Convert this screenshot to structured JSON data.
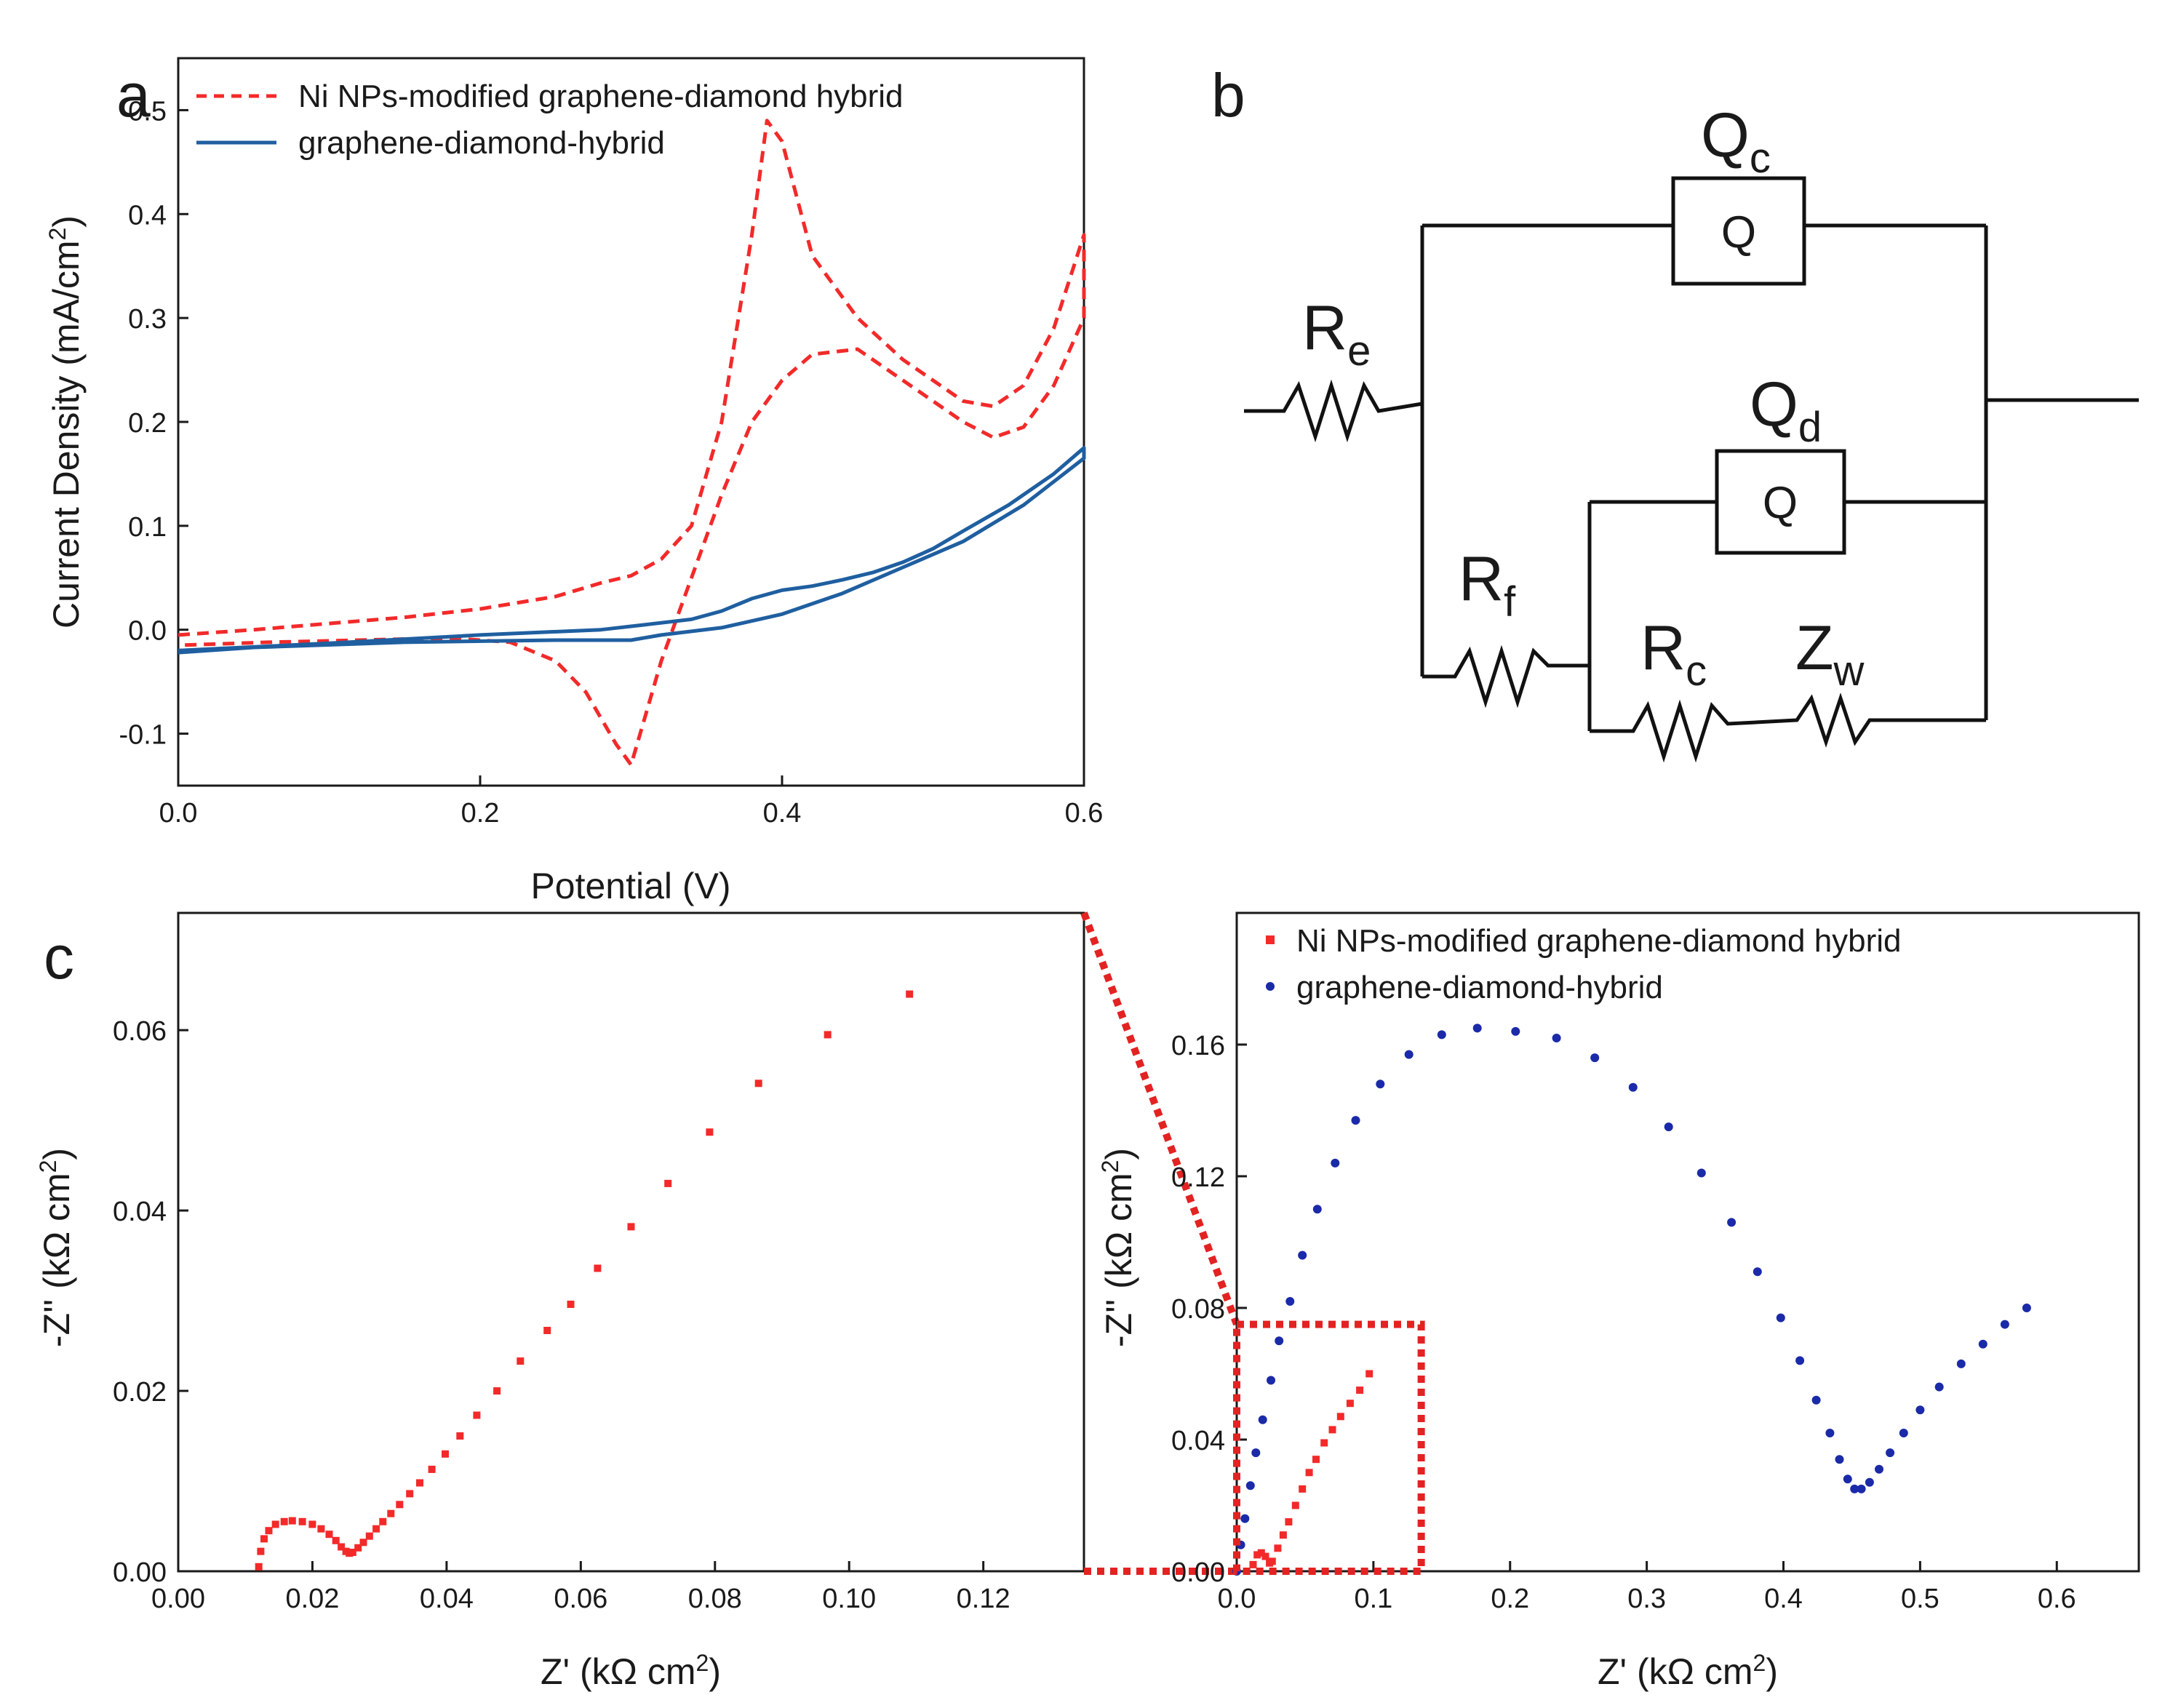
{
  "panels": {
    "a": {
      "label": "a"
    },
    "b": {
      "label": "b"
    },
    "c": {
      "label": "c"
    }
  },
  "circuit": {
    "qc_main": "Q",
    "qc_sub": "c",
    "qc_box": "Q",
    "qd_main": "Q",
    "qd_sub": "d",
    "qd_box": "Q",
    "re_main": "R",
    "re_sub": "e",
    "rf_main": "R",
    "rf_sub": "f",
    "rc_main": "R",
    "rc_sub": "c",
    "zw_main": "Z",
    "zw_sub": "w"
  },
  "colors": {
    "red": "#f22a2a",
    "blue": "#1f5fa0",
    "navy": "#1a2aa8",
    "axis": "#1a1a1a"
  },
  "chart_data": [
    {
      "id": "cv",
      "type": "line",
      "title": "",
      "xlabel": "Potential (V)",
      "ylabel_main": "Current Density (mA/cm",
      "ylabel_sup": "2",
      "ylabel_tail": ")",
      "xlim": [
        0.0,
        0.6
      ],
      "ylim": [
        -0.15,
        0.55
      ],
      "xticks": [
        "0.0",
        "0.2",
        "0.4",
        "0.6"
      ],
      "yticks": [
        "-0.1",
        "0.0",
        "0.1",
        "0.2",
        "0.3",
        "0.4",
        "0.5"
      ],
      "legend": "top-left",
      "series": [
        {
          "name": "Ni NPs-modified graphene-diamond hybrid",
          "style": "dashed",
          "color": "#f22a2a",
          "x": [
            0.0,
            0.05,
            0.1,
            0.15,
            0.2,
            0.25,
            0.28,
            0.3,
            0.32,
            0.34,
            0.36,
            0.38,
            0.39,
            0.4,
            0.42,
            0.45,
            0.48,
            0.52,
            0.54,
            0.56,
            0.58,
            0.6,
            0.6,
            0.58,
            0.56,
            0.54,
            0.52,
            0.49,
            0.45,
            0.42,
            0.4,
            0.38,
            0.36,
            0.34,
            0.32,
            0.31,
            0.3,
            0.29,
            0.27,
            0.25,
            0.22,
            0.18,
            0.12,
            0.06,
            0.0
          ],
          "y": [
            -0.005,
            0.0,
            0.006,
            0.012,
            0.02,
            0.032,
            0.045,
            0.052,
            0.068,
            0.1,
            0.2,
            0.38,
            0.49,
            0.47,
            0.36,
            0.3,
            0.26,
            0.22,
            0.215,
            0.235,
            0.29,
            0.38,
            0.3,
            0.235,
            0.195,
            0.185,
            0.2,
            0.23,
            0.27,
            0.265,
            0.24,
            0.2,
            0.13,
            0.05,
            -0.03,
            -0.08,
            -0.13,
            -0.11,
            -0.06,
            -0.03,
            -0.012,
            -0.008,
            -0.01,
            -0.012,
            -0.015
          ]
        },
        {
          "name": "graphene-diamond-hybrid",
          "style": "solid",
          "color": "#1f5fa0",
          "x": [
            0.0,
            0.1,
            0.2,
            0.28,
            0.31,
            0.34,
            0.36,
            0.38,
            0.4,
            0.42,
            0.44,
            0.46,
            0.48,
            0.5,
            0.52,
            0.55,
            0.58,
            0.6,
            0.6,
            0.56,
            0.52,
            0.48,
            0.44,
            0.4,
            0.36,
            0.32,
            0.3,
            0.25,
            0.15,
            0.05,
            0.0
          ],
          "y": [
            -0.02,
            -0.013,
            -0.005,
            0.0,
            0.005,
            0.01,
            0.018,
            0.03,
            0.038,
            0.042,
            0.048,
            0.055,
            0.065,
            0.078,
            0.095,
            0.12,
            0.15,
            0.175,
            0.165,
            0.12,
            0.085,
            0.06,
            0.035,
            0.015,
            0.002,
            -0.005,
            -0.01,
            -0.01,
            -0.012,
            -0.017,
            -0.022
          ]
        }
      ]
    },
    {
      "id": "eis_zoom",
      "type": "scatter",
      "xlabel_main": "Z' (kΩ cm",
      "xlabel_sup": "2",
      "xlabel_tail": ")",
      "ylabel_main": "-Z'' (kΩ cm",
      "ylabel_sup": "2",
      "ylabel_tail": ")",
      "xlim": [
        0.0,
        0.135
      ],
      "ylim": [
        0.0,
        0.073
      ],
      "xticks": [
        "0.00",
        "0.02",
        "0.04",
        "0.06",
        "0.08",
        "0.10",
        "0.12"
      ],
      "yticks": [
        "0.00",
        "0.02",
        "0.04",
        "0.06"
      ],
      "series": [
        {
          "name": "Ni NPs-modified graphene-diamond hybrid",
          "color": "#f22a2a",
          "x": [
            0.012,
            0.0123,
            0.0128,
            0.0135,
            0.0145,
            0.0158,
            0.017,
            0.0185,
            0.02,
            0.0213,
            0.0225,
            0.0235,
            0.0243,
            0.025,
            0.0255,
            0.026,
            0.0268,
            0.0276,
            0.0285,
            0.0295,
            0.0305,
            0.0317,
            0.033,
            0.0345,
            0.036,
            0.0378,
            0.0398,
            0.042,
            0.0445,
            0.0475,
            0.051,
            0.055,
            0.0585,
            0.0625,
            0.0675,
            0.073,
            0.0792,
            0.0865,
            0.0968,
            0.109
          ],
          "y": [
            0.0005,
            0.0022,
            0.0036,
            0.0045,
            0.0052,
            0.0055,
            0.0056,
            0.0055,
            0.0052,
            0.0047,
            0.0041,
            0.0034,
            0.0027,
            0.0022,
            0.002,
            0.0021,
            0.0026,
            0.0032,
            0.0039,
            0.0047,
            0.0055,
            0.0064,
            0.0074,
            0.0086,
            0.0098,
            0.0113,
            0.013,
            0.015,
            0.0173,
            0.02,
            0.0233,
            0.0267,
            0.0296,
            0.0336,
            0.0382,
            0.043,
            0.0487,
            0.0541,
            0.0595,
            0.064
          ]
        }
      ]
    },
    {
      "id": "eis_full",
      "type": "scatter",
      "xlabel_main": "Z' (kΩ cm",
      "xlabel_sup": "2",
      "xlabel_tail": ")",
      "ylabel_main": "-Z'' (kΩ cm",
      "ylabel_sup": "2",
      "ylabel_tail": ")",
      "xlim": [
        0.0,
        0.66
      ],
      "ylim": [
        0.0,
        0.2
      ],
      "xticks": [
        "0.0",
        "0.1",
        "0.2",
        "0.3",
        "0.4",
        "0.5",
        "0.6"
      ],
      "yticks": [
        "0.00",
        "0.04",
        "0.08",
        "0.12",
        "0.16"
      ],
      "legend": "top-left",
      "zoom_box": {
        "x": [
          0.0,
          0.135
        ],
        "y": [
          0.0,
          0.075
        ]
      },
      "series": [
        {
          "name": "Ni NPs-modified graphene-diamond hybrid",
          "color": "#f22a2a",
          "x": [
            0.012,
            0.015,
            0.018,
            0.021,
            0.024,
            0.026,
            0.03,
            0.034,
            0.038,
            0.043,
            0.048,
            0.053,
            0.058,
            0.064,
            0.07,
            0.076,
            0.083,
            0.09,
            0.097
          ],
          "y": [
            0.002,
            0.005,
            0.0056,
            0.0045,
            0.0025,
            0.003,
            0.007,
            0.011,
            0.015,
            0.02,
            0.025,
            0.03,
            0.034,
            0.039,
            0.043,
            0.047,
            0.051,
            0.055,
            0.06
          ]
        },
        {
          "name": "graphene-diamond-hybrid",
          "color": "#1a2aa8",
          "x": [
            0.0,
            0.003,
            0.006,
            0.01,
            0.014,
            0.019,
            0.025,
            0.031,
            0.039,
            0.048,
            0.059,
            0.072,
            0.087,
            0.105,
            0.126,
            0.15,
            0.176,
            0.204,
            0.234,
            0.262,
            0.29,
            0.316,
            0.34,
            0.362,
            0.381,
            0.398,
            0.412,
            0.424,
            0.434,
            0.441,
            0.447,
            0.452,
            0.457,
            0.463,
            0.47,
            0.478,
            0.488,
            0.5,
            0.514,
            0.53,
            0.546,
            0.562,
            0.578
          ],
          "y": [
            0.0,
            0.008,
            0.016,
            0.026,
            0.036,
            0.046,
            0.058,
            0.07,
            0.082,
            0.096,
            0.11,
            0.124,
            0.137,
            0.148,
            0.157,
            0.163,
            0.165,
            0.164,
            0.162,
            0.156,
            0.147,
            0.135,
            0.121,
            0.106,
            0.091,
            0.077,
            0.064,
            0.052,
            0.042,
            0.034,
            0.028,
            0.025,
            0.025,
            0.027,
            0.031,
            0.036,
            0.042,
            0.049,
            0.056,
            0.063,
            0.069,
            0.075,
            0.08
          ]
        }
      ]
    }
  ]
}
